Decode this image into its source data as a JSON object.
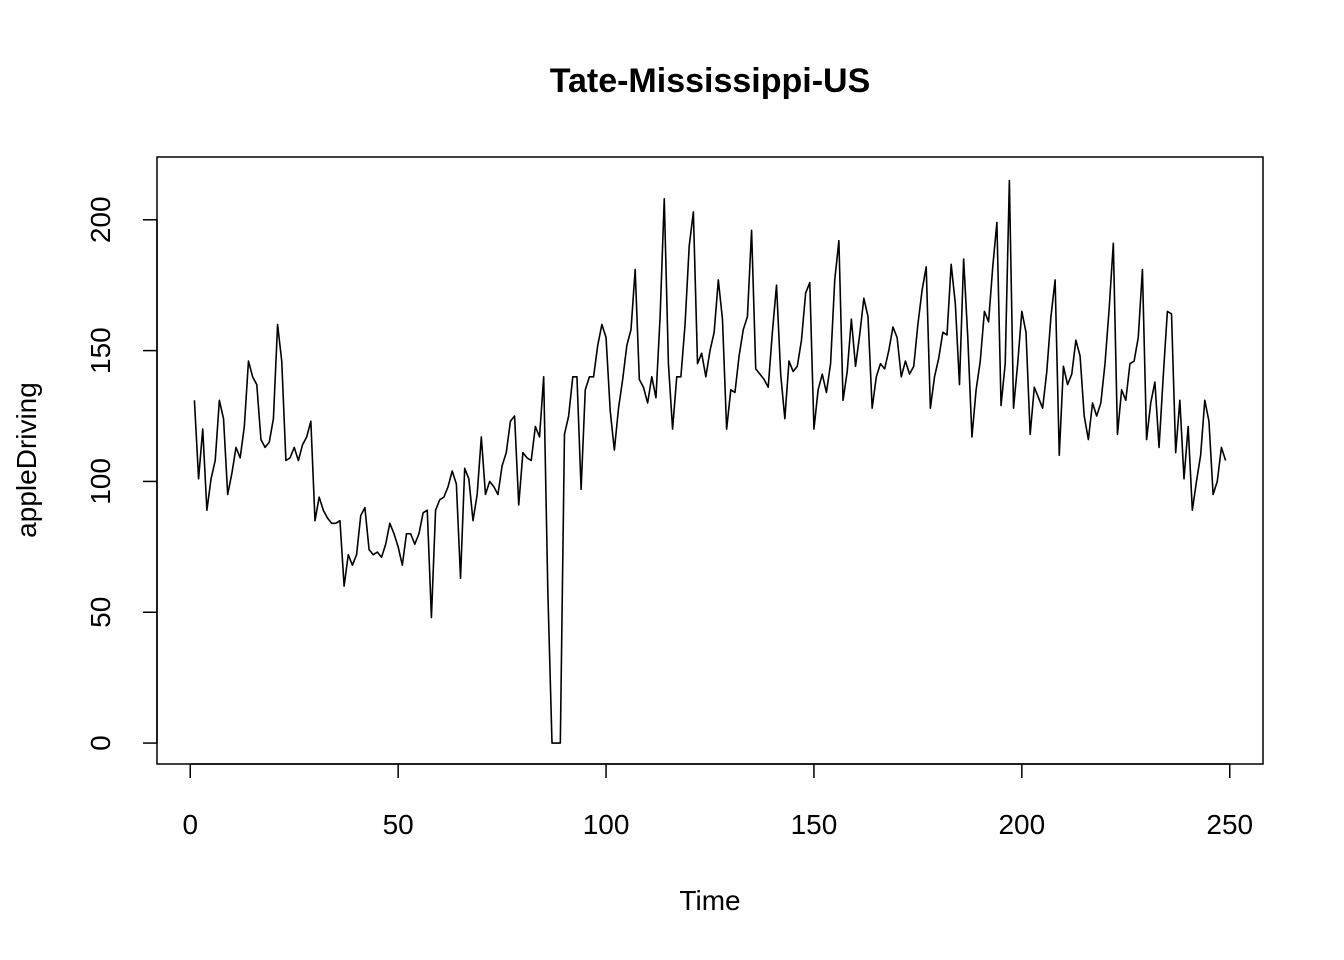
{
  "chart_data": {
    "type": "line",
    "title": "Tate-Mississippi-US",
    "xlabel": "Time",
    "ylabel": "appleDriving",
    "xlim": [
      -8,
      258
    ],
    "ylim": [
      -8,
      224
    ],
    "xticks": [
      0,
      50,
      100,
      150,
      200,
      250
    ],
    "yticks": [
      0,
      50,
      100,
      150,
      200
    ],
    "x_start": 1,
    "series": [
      {
        "values": [
          131,
          101,
          120,
          89,
          101,
          108,
          131,
          124,
          95,
          103,
          113,
          109,
          121,
          146,
          140,
          137,
          116,
          113,
          115,
          124,
          160,
          146,
          108,
          109,
          113,
          108,
          114,
          117,
          123,
          85,
          94,
          89,
          86,
          84,
          84,
          85,
          60,
          72,
          68,
          72,
          87,
          90,
          74,
          72,
          73,
          71,
          76,
          84,
          80,
          75,
          68,
          80,
          80,
          76,
          80,
          88,
          89,
          48,
          89,
          93,
          94,
          98,
          104,
          99,
          63,
          105,
          101,
          85,
          95,
          117,
          95,
          100,
          98,
          95,
          106,
          111,
          123,
          125,
          91,
          111,
          109,
          108,
          121,
          117,
          140,
          58,
          0,
          0,
          0,
          118,
          125,
          140,
          140,
          97,
          135,
          140,
          140,
          152,
          160,
          155,
          127,
          112,
          128,
          139,
          152,
          158,
          181,
          139,
          136,
          130,
          140,
          132,
          163,
          208,
          145,
          120,
          140,
          140,
          160,
          190,
          203,
          145,
          149,
          140,
          150,
          157,
          177,
          162,
          120,
          135,
          134,
          148,
          158,
          163,
          196,
          143,
          141,
          139,
          136,
          157,
          175,
          141,
          124,
          146,
          142,
          144,
          154,
          172,
          176,
          120,
          135,
          141,
          134,
          145,
          177,
          192,
          131,
          142,
          162,
          144,
          156,
          170,
          163,
          128,
          140,
          145,
          143,
          150,
          159,
          155,
          140,
          146,
          141,
          144,
          160,
          173,
          182,
          128,
          140,
          147,
          157,
          156,
          183,
          168,
          137,
          185,
          155,
          117,
          135,
          146,
          165,
          161,
          182,
          199,
          129,
          145,
          215,
          128,
          145,
          165,
          157,
          118,
          136,
          132,
          128,
          142,
          163,
          177,
          110,
          144,
          137,
          141,
          154,
          148,
          125,
          116,
          130,
          125,
          130,
          145,
          166,
          191,
          118,
          135,
          131,
          145,
          146,
          155,
          181,
          116,
          130,
          138,
          113,
          140,
          165,
          164,
          111,
          131,
          101,
          121,
          89,
          100,
          110,
          131,
          123,
          95,
          100,
          113,
          108
        ]
      }
    ]
  }
}
